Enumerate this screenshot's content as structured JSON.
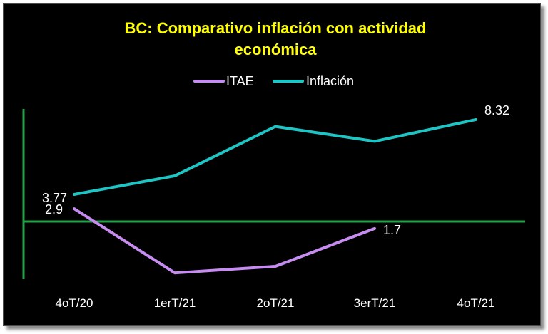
{
  "chart_data": {
    "type": "line",
    "title_line1": "BC: Comparativo inflación con actividad",
    "title_line2": "económica",
    "categories": [
      "4oT/20",
      "1erT/21",
      "2oT/21",
      "3erT/21",
      "4oT/21"
    ],
    "series": [
      {
        "name": "ITAE",
        "color": "#c78cf0",
        "values": [
          2.9,
          -1.0,
          -0.6,
          1.7,
          null
        ]
      },
      {
        "name": "Inflación",
        "color": "#1fc4c4",
        "values": [
          3.77,
          4.9,
          7.9,
          7.0,
          8.32
        ]
      }
    ],
    "data_labels": [
      {
        "series": 0,
        "index": 0,
        "text": "2.9"
      },
      {
        "series": 0,
        "index": 3,
        "text": "1.7"
      },
      {
        "series": 1,
        "index": 0,
        "text": "3.77"
      },
      {
        "series": 1,
        "index": 4,
        "text": "8.32"
      }
    ],
    "legend": "top",
    "grid": false,
    "axis_color": "#22a34a",
    "background": "#000000",
    "title_color": "#ffff00"
  }
}
